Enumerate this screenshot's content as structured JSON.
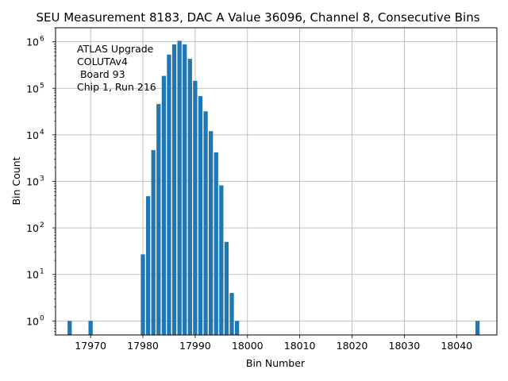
{
  "chart_data": {
    "type": "bar",
    "title": "SEU Measurement 8183, DAC A Value 36096, Channel 8, Consecutive Bins",
    "xlabel": "Bin Number",
    "ylabel": "Bin Count",
    "yscale": "log",
    "xlim": [
      17963.3,
      18047.7
    ],
    "ylim": [
      0.5,
      2000000
    ],
    "grid": true,
    "color": "#1f77b4",
    "bar_width": 0.8,
    "xticks": [
      17970,
      17980,
      17990,
      18000,
      18010,
      18020,
      18030,
      18040
    ],
    "xtick_labels": [
      "17970",
      "17980",
      "17990",
      "18000",
      "18010",
      "18020",
      "18030",
      "18040"
    ],
    "yticks": [
      1,
      10,
      100,
      1000,
      10000,
      100000,
      1000000
    ],
    "ytick_labels": [
      {
        "base": "10",
        "exp": "0"
      },
      {
        "base": "10",
        "exp": "1"
      },
      {
        "base": "10",
        "exp": "2"
      },
      {
        "base": "10",
        "exp": "3"
      },
      {
        "base": "10",
        "exp": "4"
      },
      {
        "base": "10",
        "exp": "5"
      },
      {
        "base": "10",
        "exp": "6"
      }
    ],
    "annotation": [
      "ATLAS Upgrade",
      "COLUTAv4",
      " Board 93",
      "Chip 1, Run 216"
    ],
    "bins": [
      17966,
      17970,
      17980,
      17981,
      17982,
      17983,
      17984,
      17985,
      17986,
      17987,
      17988,
      17989,
      17990,
      17991,
      17992,
      17993,
      17994,
      17995,
      17996,
      17997,
      17998,
      18044
    ],
    "values": [
      1,
      1,
      27,
      480,
      4700,
      46000,
      185000,
      530000,
      880000,
      1050000,
      880000,
      430000,
      145000,
      68000,
      32000,
      12000,
      4200,
      820,
      50,
      4,
      1,
      1
    ]
  }
}
